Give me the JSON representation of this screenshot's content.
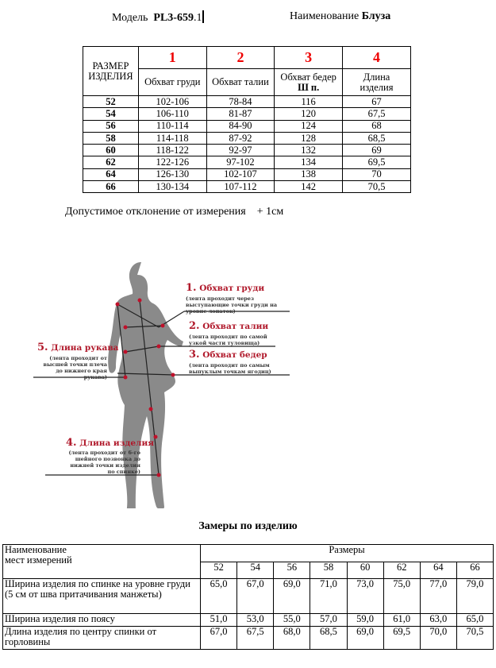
{
  "header": {
    "model_label": "Модель",
    "model_code_bold": "PL3-659",
    "model_code_suffix": ".1",
    "name_label": "Наименование",
    "name_value": "Блуза"
  },
  "size_table": {
    "size_header": "РАЗМЕР ИЗДЕЛИЯ",
    "columns": [
      {
        "num": "1",
        "label": "Обхват груди",
        "label_bold": ""
      },
      {
        "num": "2",
        "label": "Обхват талии",
        "label_bold": ""
      },
      {
        "num": "3",
        "label": "Обхват бедер",
        "label_bold": "Ш п."
      },
      {
        "num": "4",
        "label": "Длина изделия",
        "label_bold": ""
      }
    ],
    "rows": [
      [
        "52",
        "102-106",
        "78-84",
        "116",
        "67"
      ],
      [
        "54",
        "106-110",
        "81-87",
        "120",
        "67,5"
      ],
      [
        "56",
        "110-114",
        "84-90",
        "124",
        "68"
      ],
      [
        "58",
        "114-118",
        "87-92",
        "128",
        "68,5"
      ],
      [
        "60",
        "118-122",
        "92-97",
        "132",
        "69"
      ],
      [
        "62",
        "122-126",
        "97-102",
        "134",
        "69,5"
      ],
      [
        "64",
        "126-130",
        "102-107",
        "138",
        "70"
      ],
      [
        "66",
        "130-134",
        "107-112",
        "142",
        "70,5"
      ]
    ]
  },
  "tolerance": {
    "text": "Допустимое отклонение от измерения",
    "value": "+ 1см"
  },
  "figure": {
    "labels": [
      {
        "num": "1.",
        "title": "Обхват груди",
        "note": "(лента проходит через выступающие точки груди на уровне лопаток)"
      },
      {
        "num": "2.",
        "title": "Обхват талии",
        "note": "(лента проходит по самой узкой части туловища)"
      },
      {
        "num": "3.",
        "title": "Обхват бедер",
        "note": "(лента проходит по самым выпуклым точкам ягодиц)"
      },
      {
        "num": "4.",
        "title": "Длина изделия",
        "note": "(лента проходит от 6-го шейного позвонка до нижней точки изделия по спинке)"
      },
      {
        "num": "5.",
        "title": "Длина рукава",
        "note": "(лента проходит от высшей точки плеча до нижнего края рукава)"
      }
    ],
    "silhouette_color": "#8a8a8a",
    "marker_color": "#c0102a"
  },
  "measure_table": {
    "title": "Замеры по изделию",
    "name_header": "Наименование мест измерений",
    "sizes_header": "Размеры",
    "sizes": [
      "52",
      "54",
      "56",
      "58",
      "60",
      "62",
      "64",
      "66"
    ],
    "rows": [
      {
        "name": "Ширина изделия по спинке на уровне груди (5 см от шва притачивания манжеты)",
        "values": [
          "65,0",
          "67,0",
          "69,0",
          "71,0",
          "73,0",
          "75,0",
          "77,0",
          "79,0"
        ]
      },
      {
        "name": "Ширина изделия по поясу",
        "values": [
          "51,0",
          "53,0",
          "55,0",
          "57,0",
          "59,0",
          "61,0",
          "63,0",
          "65,0"
        ]
      },
      {
        "name": "Длина изделия по центру спинки от горловины",
        "values": [
          "67,0",
          "67,5",
          "68,0",
          "68,5",
          "69,0",
          "69,5",
          "70,0",
          "70,5"
        ]
      }
    ]
  }
}
